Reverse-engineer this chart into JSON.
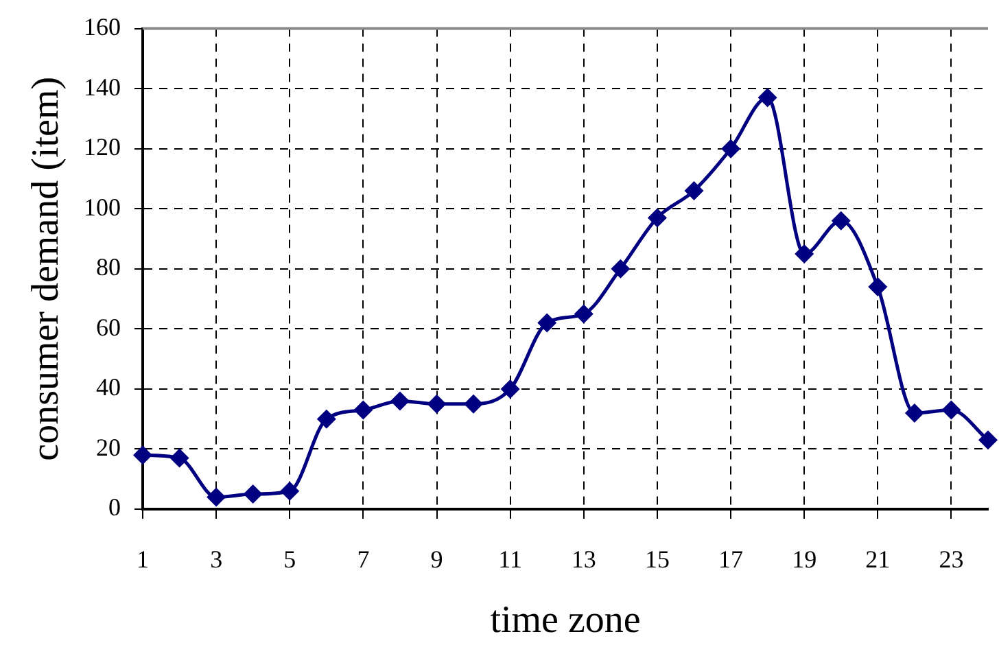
{
  "chart_data": {
    "type": "line",
    "xlabel": "time zone",
    "ylabel": "consumer demand (item)",
    "x": [
      1,
      2,
      3,
      4,
      5,
      6,
      7,
      8,
      9,
      10,
      11,
      12,
      13,
      14,
      15,
      16,
      17,
      18,
      19,
      20,
      21,
      22,
      23,
      24
    ],
    "series": [
      {
        "color": "#000080",
        "values": [
          18,
          17,
          4,
          5,
          6,
          30,
          33,
          36,
          35,
          35,
          40,
          62,
          65,
          80,
          97,
          106,
          120,
          137,
          85,
          96,
          74,
          32,
          33,
          23
        ]
      }
    ],
    "xlim": [
      1,
      24
    ],
    "ylim": [
      0,
      160
    ],
    "xticks": [
      1,
      3,
      5,
      7,
      9,
      11,
      13,
      15,
      17,
      19,
      21,
      23
    ],
    "yticks": [
      0,
      20,
      40,
      60,
      80,
      100,
      120,
      140,
      160
    ],
    "grid": true,
    "marker": "diamond",
    "line_style": "solid"
  }
}
